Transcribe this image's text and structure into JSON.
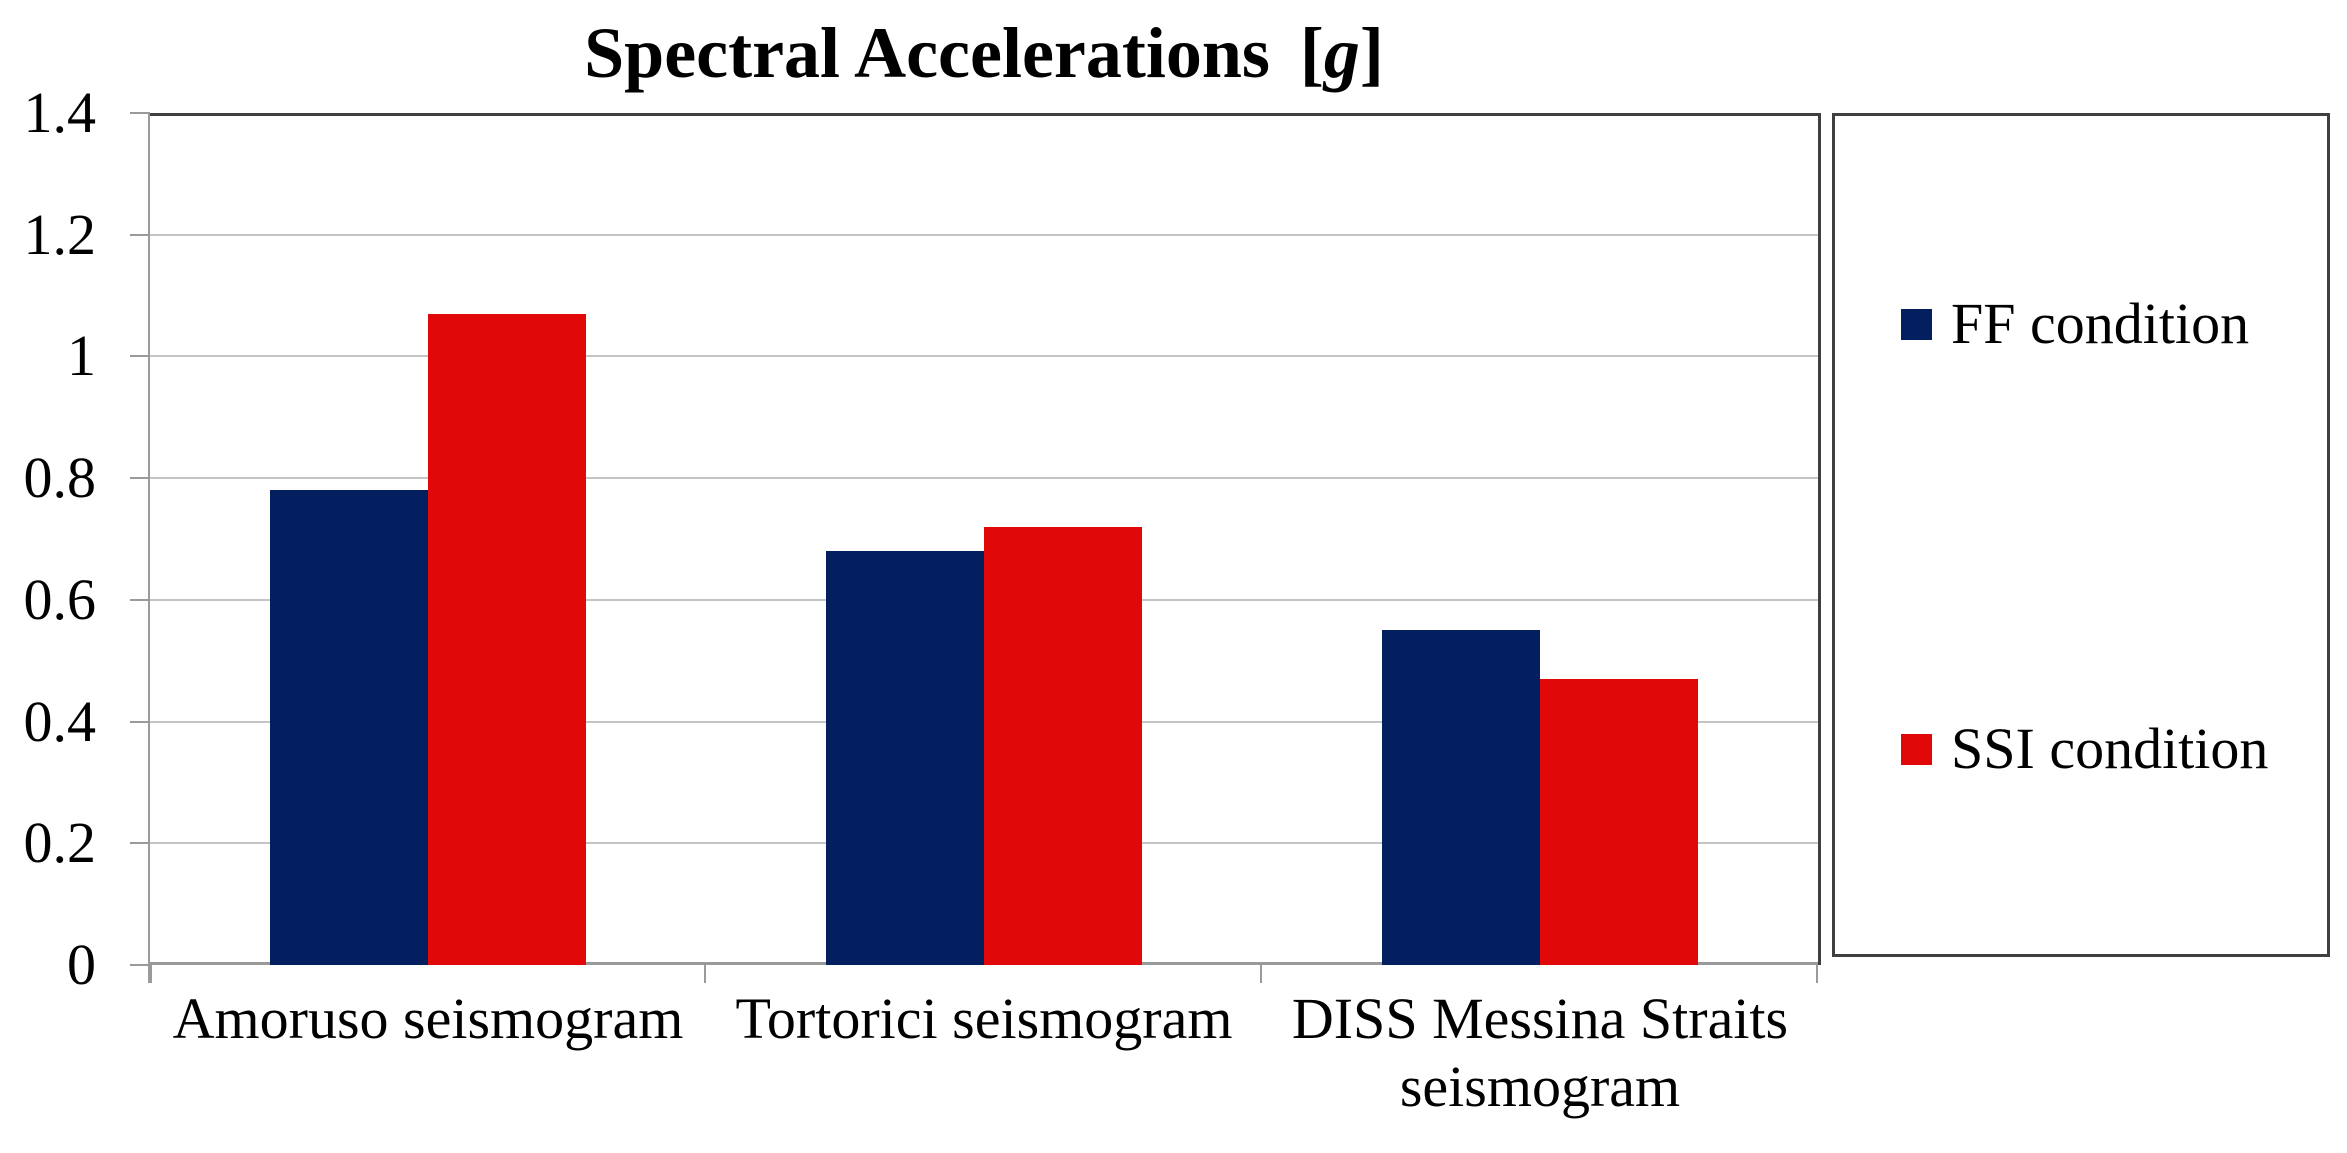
{
  "chart_data": {
    "type": "bar",
    "title": {
      "text": "Spectral Accelerations",
      "bracket_open": "[",
      "unit": "g",
      "bracket_close": "]"
    },
    "categories": [
      "Amoruso seismogram",
      "Tortorici seismogram",
      "DISS Messina Straits seismogram"
    ],
    "category_label_lines": [
      [
        "Amoruso seismogram"
      ],
      [
        "Tortorici seismogram"
      ],
      [
        "DISS Messina Straits",
        "seismogram"
      ]
    ],
    "series": [
      {
        "name": "FF condition",
        "color": "#041f60",
        "values": [
          0.78,
          0.68,
          0.55
        ]
      },
      {
        "name": "SSI condition",
        "color": "#e00808",
        "values": [
          1.07,
          0.72,
          0.47
        ]
      }
    ],
    "ylim": [
      0,
      1.4
    ],
    "ytick_step": 0.2,
    "ytick_labels": [
      "0",
      "0.2",
      "0.4",
      "0.6",
      "0.8",
      "1",
      "1.2",
      "1.4"
    ],
    "grid": true,
    "legend_position": "right"
  },
  "colors": {
    "ff_condition": "#041f60",
    "ssi_condition": "#e00808",
    "gridline": "#c4c4c4",
    "axis": "#9a9a9a",
    "border": "#3f3f3f",
    "background": "#ffffff",
    "text": "#000000"
  }
}
